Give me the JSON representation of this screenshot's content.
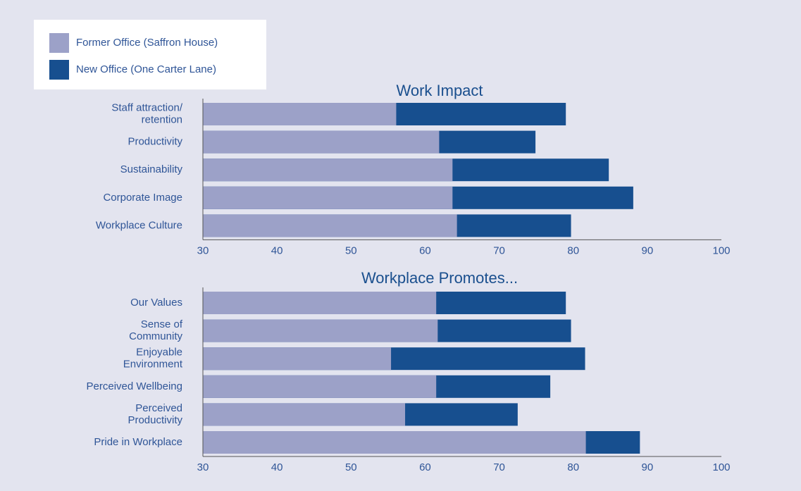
{
  "chart_data": [
    {
      "type": "bar",
      "title": "Work Impact",
      "categories": [
        "Staff attraction/\nretention",
        "Productivity",
        "Sustainability",
        "Corporate Image",
        "Workplace Culture"
      ],
      "series": [
        {
          "name": "Former Office (Saffron House)",
          "color": "#9ca1c8",
          "values": [
            56.1,
            61.9,
            63.7,
            63.7,
            64.3
          ]
        },
        {
          "name": "New Office (One Carter Lane)",
          "color": "#174f8f",
          "values": [
            79.0,
            74.9,
            84.8,
            88.1,
            79.7
          ]
        }
      ],
      "xlim": [
        30,
        100
      ],
      "xticks": [
        30,
        40,
        50,
        60,
        70,
        80,
        90,
        100
      ]
    },
    {
      "type": "bar",
      "title": "Workplace Promotes...",
      "categories": [
        "Our Values",
        "Sense of\nCommunity",
        "Enjoyable\nEnvironment",
        "Perceived Wellbeing",
        "Perceived\nProductivity",
        "Pride in Workplace"
      ],
      "series": [
        {
          "name": "Former Office (Saffron House)",
          "color": "#9ca1c8",
          "values": [
            61.5,
            61.7,
            55.4,
            61.5,
            57.3,
            81.7
          ]
        },
        {
          "name": "New Office (One Carter Lane)",
          "color": "#174f8f",
          "values": [
            79.0,
            79.7,
            81.6,
            76.9,
            72.5,
            89.0
          ]
        }
      ],
      "xlim": [
        30,
        100
      ],
      "xticks": [
        30,
        40,
        50,
        60,
        70,
        80,
        90,
        100
      ]
    }
  ]
}
